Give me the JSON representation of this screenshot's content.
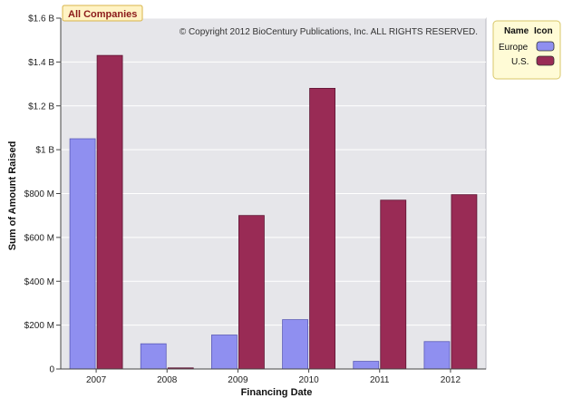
{
  "filter_tag": "All Companies",
  "copyright": "© Copyright 2012 BioCentury Publications, Inc. ALL RIGHTS RESERVED.",
  "legend": {
    "header_name": "Name",
    "header_icon": "Icon"
  },
  "colors": {
    "plot_bg": "#e6e6ea",
    "legend_bg": "#fffbd6",
    "legend_border": "#d8c76a",
    "tag_border": "#d8b44a",
    "tag_bg": "#fff3c4"
  },
  "chart_data": {
    "type": "bar",
    "xlabel": "Financing Date",
    "ylabel": "Sum of Amount Raised",
    "categories": [
      "2007",
      "2008",
      "2009",
      "2010",
      "2011",
      "2012"
    ],
    "ylim": [
      0,
      1600
    ],
    "yticks": [
      0,
      200,
      400,
      600,
      800,
      1000,
      1200,
      1400,
      1600
    ],
    "ytick_labels": [
      "0",
      "$200 M",
      "$400 M",
      "$600 M",
      "$800 M",
      "$1 B",
      "$1.2 B",
      "$1.4 B",
      "$1.6 B"
    ],
    "units": "millions USD",
    "grid": true,
    "legend_position": "top-right",
    "series": [
      {
        "name": "Europe",
        "color": "#8f8ff0",
        "values": [
          1050,
          115,
          155,
          225,
          35,
          125
        ]
      },
      {
        "name": "U.S.",
        "color": "#992b55",
        "values": [
          1430,
          5,
          700,
          1280,
          770,
          795
        ]
      }
    ]
  }
}
